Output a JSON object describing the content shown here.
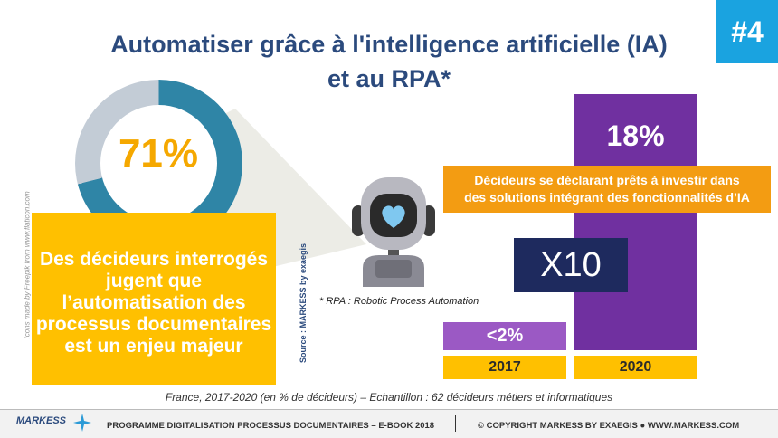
{
  "tag": "#4",
  "title_line1": "Automatiser grâce à l'intelligence artificielle (IA)",
  "title_line2": "et au RPA*",
  "donut": {
    "value": 71,
    "label": "71%",
    "color": "#2f85a6",
    "rest_color": "#c3ccd6"
  },
  "highlight_box": {
    "line1": "Des décideurs interrogés",
    "line2": "jugent que",
    "line3": "l’automatisation des",
    "line4": "processus documentaires",
    "line5": "est un enjeu majeur"
  },
  "icons_credit": "Icons made by Freepik from www.flaticon.com",
  "source_label": "Source : MARKESS by exaegis",
  "rpa_note": "* RPA : Robotic Process Automation",
  "chart_data": {
    "type": "bar",
    "categories": [
      "2017",
      "2020"
    ],
    "values": [
      2,
      18
    ],
    "labels": [
      "<2%",
      "18%"
    ],
    "colors": [
      "#9b59c4",
      "#7030a0"
    ],
    "ylim": [
      0,
      18
    ],
    "annotation": "Décideurs se déclarant prêts à investir dans des solutions intégrant des fonctionnalités d’IA",
    "annotation_line1": "Décideurs se déclarant prêts à investir dans",
    "annotation_line2": "des solutions intégrant des fonctionnalités d’IA",
    "multiplier": "X10"
  },
  "footnote": "France, 2017-2020 (en % de décideurs) – Echantillon : 62 décideurs métiers et informatiques",
  "footer": {
    "logo": "MARKESS",
    "program": "PROGRAMME  DIGITALISATION  PROCESSUS  DOCUMENTAIRES   – E-BOOK  2018",
    "copyright": "© COPYRIGHT  MARKESS  BY  EXAEGIS  ●  WWW.MARKESS.COM"
  }
}
